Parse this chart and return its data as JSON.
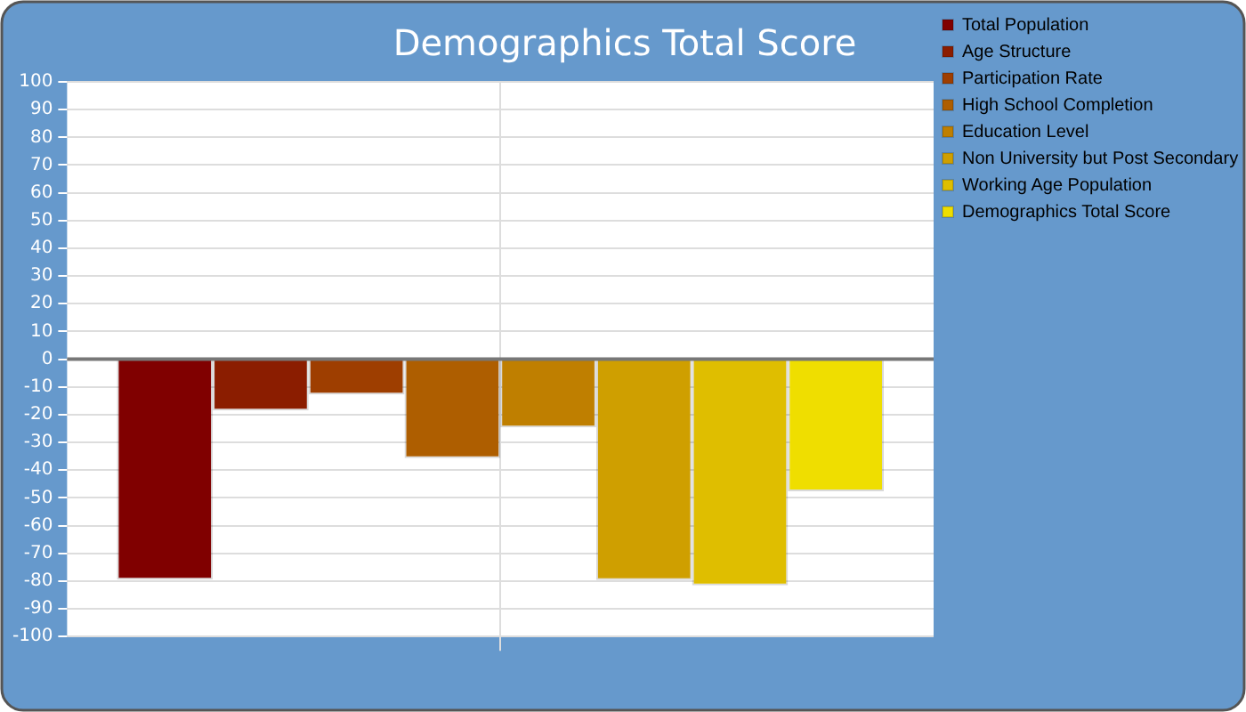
{
  "chart_data": {
    "type": "bar",
    "title": "Demographics Total Score",
    "categories": [
      null
    ],
    "series": [
      {
        "name": "Total Population",
        "color": "#800000",
        "values": [
          -79.5
        ]
      },
      {
        "name": "Age Structure",
        "color": "#8b1d00",
        "values": [
          -18.5
        ]
      },
      {
        "name": "Participation Rate",
        "color": "#9e3e00",
        "values": [
          -12.7
        ]
      },
      {
        "name": "High School Completion",
        "color": "#ae5e00",
        "values": [
          -35.7
        ]
      },
      {
        "name": "Education Level",
        "color": "#bf7f00",
        "values": [
          -24.6
        ]
      },
      {
        "name": "Non University but Post Secondary",
        "color": "#cf9f00",
        "values": [
          -79.6
        ]
      },
      {
        "name": "Working Age Population",
        "color": "#dfbe00",
        "values": [
          -81.6
        ]
      },
      {
        "name": "Demographics Total Score",
        "color": "#efde00",
        "values": [
          -47.6
        ]
      }
    ],
    "ylim": [
      -100,
      100
    ],
    "yticks": [
      -100,
      -90,
      -80,
      -70,
      -60,
      -50,
      -40,
      -30,
      -20,
      -10,
      0,
      10,
      20,
      30,
      40,
      50,
      60,
      70,
      80,
      90,
      100
    ],
    "grid": true,
    "legend": "top right"
  }
}
